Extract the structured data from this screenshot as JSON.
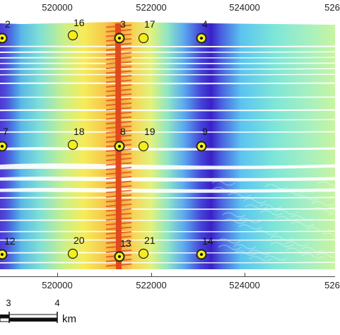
{
  "map": {
    "x_axis_ticks": [
      "520000",
      "522000",
      "524000",
      "526"
    ],
    "points": [
      {
        "id": "2",
        "style": "station"
      },
      {
        "id": "16",
        "style": "proposed"
      },
      {
        "id": "3",
        "style": "station"
      },
      {
        "id": "17",
        "style": "proposed"
      },
      {
        "id": "4",
        "style": "station"
      },
      {
        "id": "7",
        "style": "station"
      },
      {
        "id": "18",
        "style": "proposed"
      },
      {
        "id": "8",
        "style": "station"
      },
      {
        "id": "19",
        "style": "proposed"
      },
      {
        "id": "9",
        "style": "station"
      },
      {
        "id": "12",
        "style": "station"
      },
      {
        "id": "20",
        "style": "proposed"
      },
      {
        "id": "13",
        "style": "station"
      },
      {
        "id": "21",
        "style": "proposed"
      },
      {
        "id": "14",
        "style": "station"
      }
    ],
    "colors": {
      "deep": "#3b1fd6",
      "mid": "#58c8f0",
      "shallow": "#f6e84a",
      "high": "#f28a2a",
      "transect": "#e04a1c",
      "marker_fill": "#f5ee1a"
    }
  },
  "scale_bar": {
    "labels": [
      "3",
      "4"
    ],
    "unit": "km"
  }
}
